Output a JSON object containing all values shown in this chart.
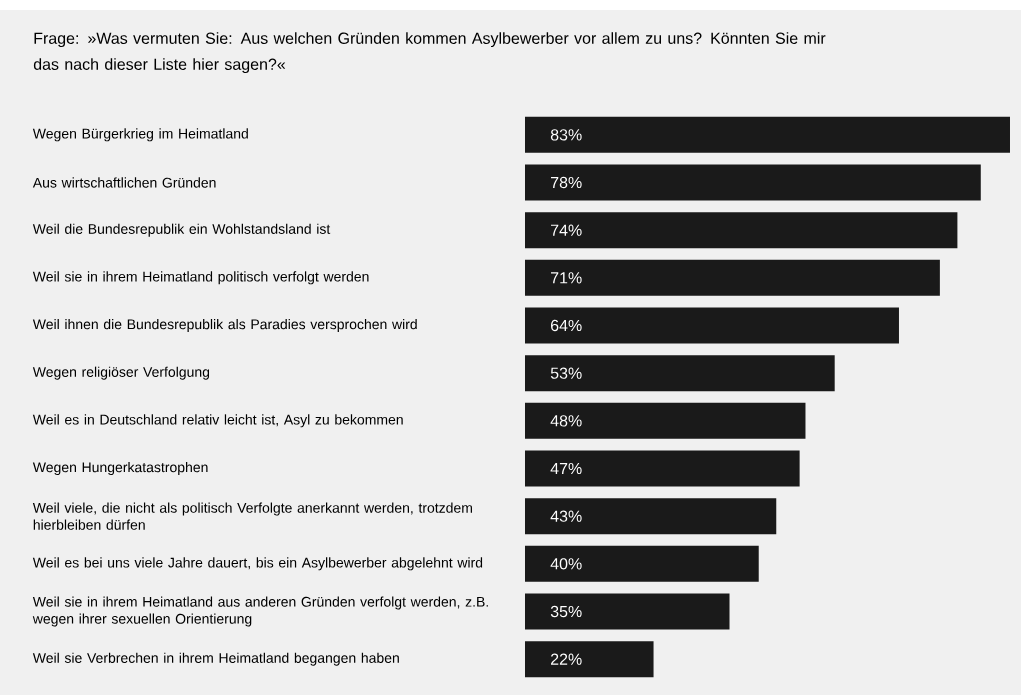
{
  "chart_data": {
    "type": "bar",
    "orientation": "horizontal",
    "title": "Frage: »Was vermuten Sie: Aus welchen Gründen kommen Asylbewerber vor allem zu uns? Könnten Sie mir das nach dieser Liste hier sagen?«",
    "categories": [
      "Wegen Bürgerkrieg im Heimatland",
      "Aus wirtschaftlichen Gründen",
      "Weil die Bundesrepublik ein Wohlstandsland ist",
      "Weil sie in ihrem Heimatland politisch verfolgt werden",
      "Weil ihnen die Bundesrepublik als Paradies versprochen wird",
      "Wegen religiöser Verfolgung",
      "Weil es in Deutschland relativ leicht ist, Asyl zu bekommen",
      "Wegen Hungerkatastrophen",
      "Weil viele, die nicht als politisch Verfolgte anerkannt werden, trotzdem hierbleiben dürfen",
      "Weil es bei uns viele Jahre dauert, bis ein Asylbewerber abgelehnt wird",
      "Weil sie in ihrem Heimatland aus anderen Gründen verfolgt werden, z.B. wegen ihrer sexuellen Orientierung",
      "Weil sie Verbrechen in ihrem Heimatland begangen haben"
    ],
    "values": [
      83,
      78,
      74,
      71,
      64,
      53,
      48,
      47,
      43,
      40,
      35,
      22
    ],
    "value_labels": [
      "83%",
      "78%",
      "74%",
      "71%",
      "64%",
      "53%",
      "48%",
      "47%",
      "43%",
      "40%",
      "35%",
      "22%"
    ],
    "color": "#1a1a1a",
    "xlim": [
      0,
      83
    ]
  }
}
